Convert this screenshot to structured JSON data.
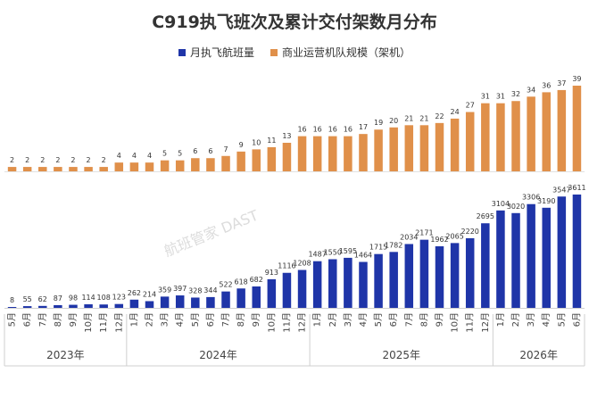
{
  "title": "C919执飞班次及累计交付架数月分布",
  "watermark": "航班管家 DAST",
  "chart_data": {
    "type": "bar",
    "title": "C919执飞班次及累计交付架数月分布",
    "categories": [
      "5月",
      "6月",
      "7月",
      "8月",
      "9月",
      "10月",
      "11月",
      "12月",
      "1月",
      "2月",
      "3月",
      "4月",
      "5月",
      "6月",
      "7月",
      "8月",
      "9月",
      "10月",
      "11月",
      "12月",
      "1月",
      "2月",
      "3月",
      "4月",
      "5月",
      "6月",
      "7月",
      "8月",
      "9月",
      "10月",
      "11月",
      "12月",
      "1月",
      "2月",
      "3月",
      "4月",
      "5月",
      "6月"
    ],
    "year_groups": [
      {
        "label": "2023年",
        "count": 8
      },
      {
        "label": "2024年",
        "count": 12
      },
      {
        "label": "2025年",
        "count": 12
      },
      {
        "label": "2026年",
        "count": 6
      }
    ],
    "series": [
      {
        "name": "月执飞航班量",
        "color": "#1f35a8",
        "values": [
          8,
          55,
          62,
          87,
          98,
          114,
          108,
          123,
          262,
          214,
          359,
          397,
          328,
          344,
          522,
          618,
          682,
          913,
          1116,
          1208,
          1487,
          1550,
          1595,
          1464,
          1715,
          1782,
          2034,
          2171,
          1962,
          2065,
          2220,
          2695,
          3104,
          3020,
          3306,
          3190,
          3547,
          3611
        ]
      },
      {
        "name": "商业运营机队规模（架机）",
        "color": "#e0904a",
        "values": [
          2,
          2,
          2,
          2,
          2,
          2,
          2,
          4,
          4,
          4,
          5,
          5,
          6,
          6,
          7,
          9,
          10,
          11,
          13,
          16,
          16,
          16,
          16,
          17,
          19,
          20,
          21,
          21,
          22,
          24,
          27,
          31,
          31,
          32,
          34,
          36,
          37,
          39
        ]
      }
    ],
    "legend_position": "top-center",
    "grid": false
  }
}
